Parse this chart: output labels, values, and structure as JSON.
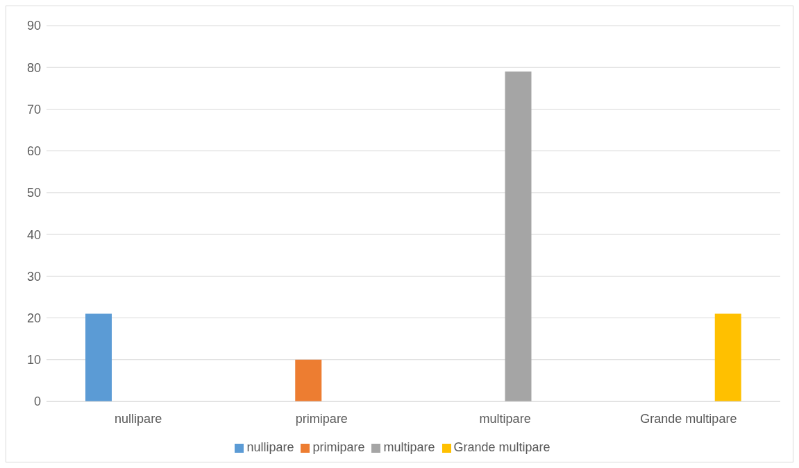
{
  "chart_data": {
    "type": "bar",
    "categories": [
      "nullipare",
      "primipare",
      "multipare",
      "Grande multipare"
    ],
    "series": [
      {
        "name": "nullipare",
        "color": "#5b9bd5",
        "values": [
          21,
          null,
          null,
          null
        ]
      },
      {
        "name": "primipare",
        "color": "#ed7d31",
        "values": [
          null,
          10,
          null,
          null
        ]
      },
      {
        "name": "multipare",
        "color": "#a5a5a5",
        "values": [
          null,
          null,
          79,
          null
        ]
      },
      {
        "name": "Grande multipare",
        "color": "#ffc000",
        "values": [
          null,
          null,
          null,
          21
        ]
      }
    ],
    "ylim": [
      0,
      90
    ],
    "yticks": [
      0,
      10,
      20,
      30,
      40,
      50,
      60,
      70,
      80,
      90
    ],
    "grid": "y",
    "legend": "bottom"
  }
}
